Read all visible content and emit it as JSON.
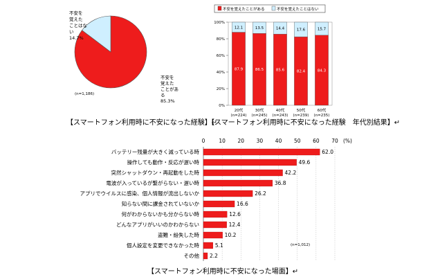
{
  "colors": {
    "red": "#ee1c1c",
    "light": "#cfefff",
    "border": "#444444",
    "grid": "#bbbbbb"
  },
  "chart_data": [
    {
      "type": "pie",
      "slices": [
        {
          "label_lines": [
            "不安を",
            "覚えた",
            "ことがあ",
            "る"
          ],
          "value_text": "85.3%",
          "value": 85.3
        },
        {
          "label_lines": [
            "不安を",
            "覚えた",
            "ことはな",
            "い"
          ],
          "value_text": "14.7%",
          "value": 14.7
        }
      ],
      "n_label": "(n=1,186)",
      "caption": "【スマートフォン利用時に不安になった経験】↵"
    },
    {
      "type": "bar",
      "stacked": true,
      "legend": [
        "不安を覚えたことがある",
        "不安を覚えたことはない"
      ],
      "categories": [
        {
          "age": "20代",
          "n": "(n=224)"
        },
        {
          "age": "30代",
          "n": "(n=245)"
        },
        {
          "age": "40代",
          "n": "(n=243)"
        },
        {
          "age": "50代",
          "n": "(n=239)"
        },
        {
          "age": "60代",
          "n": "(n=235)"
        }
      ],
      "series": [
        {
          "name": "不安を覚えたことがある",
          "values": [
            87.9,
            86.5,
            85.6,
            82.4,
            84.3
          ]
        },
        {
          "name": "不安を覚えたことはない",
          "values": [
            12.1,
            13.5,
            14.4,
            17.6,
            15.7
          ]
        }
      ],
      "yticks": [
        "0%",
        "20%",
        "40%",
        "60%",
        "80%",
        "100%"
      ],
      "ylim": [
        0,
        100
      ],
      "caption": "【スマートフォン利用時に不安になった経験　年代別結果】↵"
    },
    {
      "type": "bar",
      "orientation": "horizontal",
      "categories": [
        "バッテリー残量が大きく減っている時",
        "操作しても動作・反応が遅い時",
        "突然シャットダウン・再起動をした時",
        "電波が入っているが繋がらない・遅い時",
        "アプリでウイルスに感染、個人情報が流出しないか",
        "知らない間に課金されていないか",
        "何がわからないかも分からない時",
        "どんなアプリがいいのかわからない",
        "盗難・紛失した時",
        "個人設定を変更できなかった時",
        "その他"
      ],
      "values": [
        62.0,
        49.6,
        42.2,
        36.8,
        26.2,
        16.6,
        12.6,
        12.4,
        10.2,
        5.1,
        2.2
      ],
      "value_labels": [
        "62.0",
        "49.6",
        "42.2",
        "36.8",
        "26.2",
        "16.6",
        "12.6",
        "12.4",
        "10.2",
        "5.1",
        "2.2"
      ],
      "xticks": [
        "0",
        "10",
        "20",
        "30",
        "40",
        "50",
        "60",
        "70"
      ],
      "xunit": "(%)",
      "xlim": [
        0,
        70
      ],
      "n_label": "(n=1,012)",
      "caption": "【スマートフォン利用時に不安になった場面】↵"
    }
  ]
}
